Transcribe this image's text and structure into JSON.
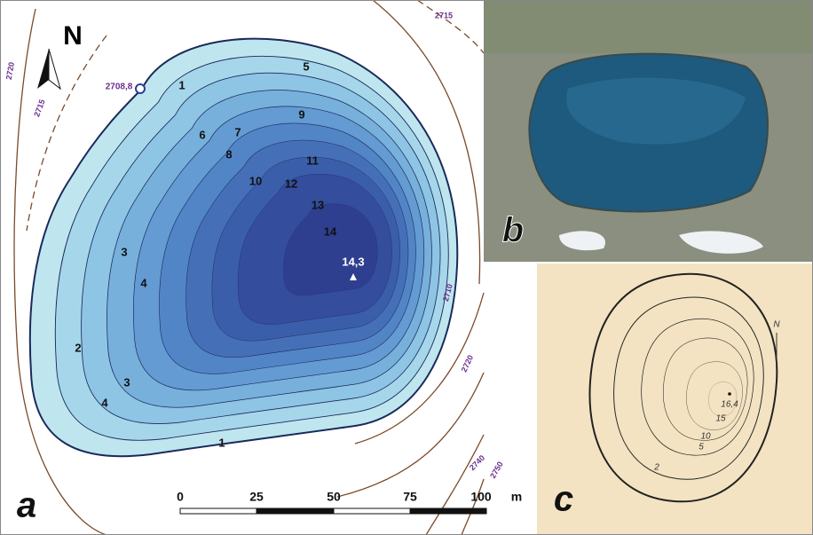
{
  "panels": {
    "a": {
      "letter": "a",
      "north": "N",
      "depth_labels": [
        "1",
        "5",
        "9",
        "6",
        "7",
        "8",
        "11",
        "10",
        "12",
        "13",
        "14",
        "3",
        "4",
        "2",
        "3",
        "4",
        "1"
      ],
      "max_depth": "14,3",
      "shore_point": "2708,8",
      "elevation_labels": [
        "2720",
        "2715",
        "2715",
        "2710",
        "2720",
        "2740",
        "2750"
      ],
      "scale": {
        "ticks": [
          "0",
          "25",
          "50",
          "75",
          "100"
        ],
        "unit": "m"
      }
    },
    "b": {
      "letter": "b"
    },
    "c": {
      "letter": "c",
      "north": "N",
      "labels": [
        "16,4",
        "15",
        "10",
        "5",
        "2"
      ]
    }
  }
}
